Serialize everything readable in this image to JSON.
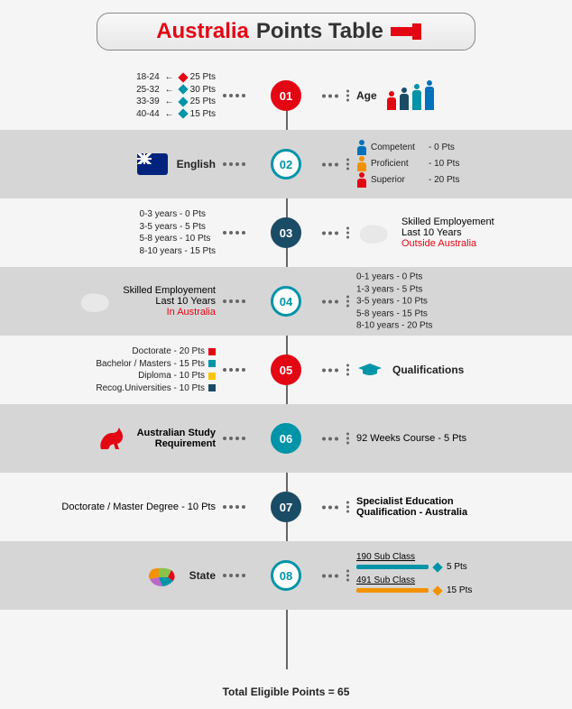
{
  "title": {
    "part1": "Australia",
    "part2": "Points Table",
    "accent": "#e30613"
  },
  "colors": {
    "red": "#e30613",
    "teal": "#0094a8",
    "navy": "#1b4c66",
    "blue": "#0072bc",
    "orange": "#f39200",
    "grey_band": "#d6d6d6"
  },
  "footer": "Total Eligible Points = 65",
  "sections": [
    {
      "num": "01",
      "band": false,
      "node_style": "red",
      "left": {
        "rows": [
          {
            "k": "18-24",
            "v": "25 Pts",
            "c": "#e30613"
          },
          {
            "k": "25-32",
            "v": "30 Pts",
            "c": "#0094a8"
          },
          {
            "k": "33-39",
            "v": "25 Pts",
            "c": "#0094a8"
          },
          {
            "k": "40-44",
            "v": "15 Pts",
            "c": "#0094a8"
          }
        ]
      },
      "right": {
        "label": "Age",
        "people": [
          {
            "c": "#e30613",
            "h": 14
          },
          {
            "c": "#1b4c66",
            "h": 18
          },
          {
            "c": "#0094a8",
            "h": 22
          },
          {
            "c": "#0072bc",
            "h": 26
          }
        ]
      }
    },
    {
      "num": "02",
      "band": true,
      "node_style": "teal",
      "left": {
        "label": "English",
        "icon": "flag"
      },
      "right": {
        "rows": [
          {
            "icon": "person",
            "c": "#0072bc",
            "k": "Competent",
            "v": "- 0 Pts"
          },
          {
            "icon": "person",
            "c": "#f39200",
            "k": "Proficient",
            "v": "- 10 Pts"
          },
          {
            "icon": "person",
            "c": "#e30613",
            "k": "Superior",
            "v": "- 20 Pts"
          }
        ]
      }
    },
    {
      "num": "03",
      "band": false,
      "node_style": "navy",
      "left": {
        "rows": [
          {
            "k": "0-3 years",
            "v": "-   0 Pts"
          },
          {
            "k": "3-5 years",
            "v": "-   5 Pts"
          },
          {
            "k": "5-8 years",
            "v": "-  10 Pts"
          },
          {
            "k": "8-10 years",
            "v": "-  15 Pts"
          }
        ]
      },
      "right": {
        "icon": "aus-white",
        "lines": [
          "Skilled Employement",
          "Last 10 Years"
        ],
        "hl": "Outside Australia"
      }
    },
    {
      "num": "04",
      "band": true,
      "node_style": "teal",
      "left": {
        "icon": "aus-white",
        "align": "right",
        "lines": [
          "Skilled Employement",
          "Last 10 Years"
        ],
        "hl": "In Australia"
      },
      "right": {
        "rows": [
          {
            "k": "0-1 years",
            "v": "-   0  Pts"
          },
          {
            "k": "1-3 years",
            "v": "-   5  Pts"
          },
          {
            "k": "3-5 years",
            "v": "-  10 Pts"
          },
          {
            "k": "5-8 years",
            "v": "-  15 Pts"
          },
          {
            "k": "8-10 years",
            "v": "-  20 Pts"
          }
        ]
      }
    },
    {
      "num": "05",
      "band": false,
      "node_style": "red",
      "left": {
        "rows": [
          {
            "k": "Doctorate - 20 Pts",
            "sq": "#e30613"
          },
          {
            "k": "Bachelor / Masters - 15 Pts",
            "sq": "#0094a8"
          },
          {
            "k": "Diploma - 10 Pts",
            "sq": "#f9c400"
          },
          {
            "k": "Recog.Universities - 10 Pts",
            "sq": "#1b4c66"
          }
        ]
      },
      "right": {
        "icon": "cap",
        "label": "Qualifications"
      }
    },
    {
      "num": "06",
      "band": true,
      "node_style": "tealfill",
      "left": {
        "icon": "kangaroo",
        "lines": [
          "Australian Study",
          "Requirement"
        ],
        "bold": true
      },
      "right": {
        "text": "92 Weeks Course - 5 Pts"
      }
    },
    {
      "num": "07",
      "band": false,
      "node_style": "navy",
      "left": {
        "text": "Doctorate / Master Degree - 10 Pts"
      },
      "right": {
        "lines": [
          "Specialist Education",
          "Qualification - Australia"
        ],
        "bold": true
      }
    },
    {
      "num": "08",
      "band": true,
      "node_style": "teal",
      "left": {
        "icon": "aus-color",
        "label": "State"
      },
      "right": {
        "bars": [
          {
            "t": "190 Sub Class",
            "c": "#0094a8",
            "v": "5 Pts"
          },
          {
            "t": "491 Sub Class",
            "c": "#f39200",
            "v": "15 Pts"
          }
        ]
      }
    }
  ]
}
